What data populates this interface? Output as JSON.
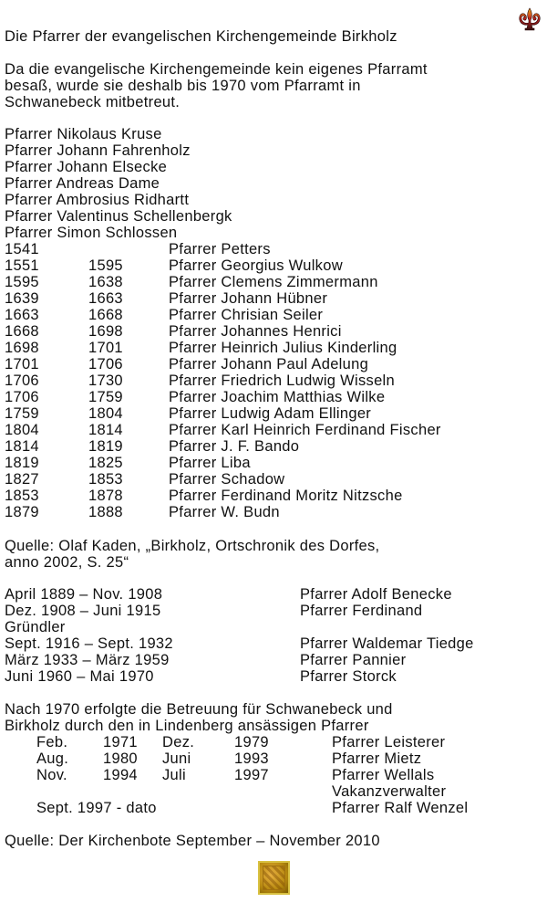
{
  "title": "Die Pfarrer der evangelischen Kirchengemeinde Birkholz",
  "intro": [
    "Da die evangelische Kirchengemeinde kein eigenes Pfarramt",
    "besaß, wurde sie deshalb bis 1970 vom Pfarramt in",
    "Schwanebeck mitbetreut."
  ],
  "early_pastors": [
    "Pfarrer Nikolaus Kruse",
    "Pfarrer Johann Fahrenholz",
    "Pfarrer Johann Elsecke",
    "Pfarrer Andreas Dame",
    "Pfarrer Ambrosius Ridhartt",
    "Pfarrer Valentinus Schellenbergk",
    "Pfarrer Simon Schlossen"
  ],
  "pastor_table": [
    {
      "from": "1541",
      "to": "",
      "name": "Pfarrer Petters"
    },
    {
      "from": "1551",
      "to": "1595",
      "name": "Pfarrer Georgius Wulkow"
    },
    {
      "from": "1595",
      "to": "1638",
      "name": "Pfarrer Clemens Zimmermann"
    },
    {
      "from": "1639",
      "to": "1663",
      "name": "Pfarrer Johann Hübner"
    },
    {
      "from": "1663",
      "to": "1668",
      "name": "Pfarrer Chrisian Seiler"
    },
    {
      "from": "1668",
      "to": "1698",
      "name": "Pfarrer Johannes Henrici"
    },
    {
      "from": "1698",
      "to": "1701",
      "name": "Pfarrer Heinrich Julius Kinderling"
    },
    {
      "from": "1701",
      "to": "1706",
      "name": "Pfarrer Johann Paul Adelung"
    },
    {
      "from": "1706",
      "to": "1730",
      "name": "Pfarrer Friedrich Ludwig Wisseln"
    },
    {
      "from": "1706",
      "to": "1759",
      "name": "Pfarrer Joachim Matthias Wilke"
    },
    {
      "from": "1759",
      "to": "1804",
      "name": "Pfarrer Ludwig Adam Ellinger"
    },
    {
      "from": "1804",
      "to": "1814",
      "name": "Pfarrer Karl Heinrich Ferdinand Fischer"
    },
    {
      "from": "1814",
      "to": "1819",
      "name": "Pfarrer J. F. Bando"
    },
    {
      "from": "1819",
      "to": "1825",
      "name": "Pfarrer Liba"
    },
    {
      "from": "1827",
      "to": "1853",
      "name": "Pfarrer Schadow"
    },
    {
      "from": "1853",
      "to": "1878",
      "name": "Pfarrer Ferdinand Moritz Nitzsche"
    },
    {
      "from": "1879",
      "to": "1888",
      "name": "Pfarrer W. Budn"
    }
  ],
  "source1": [
    "Quelle: Olaf Kaden, „Birkholz, Ortschronik des Dorfes,",
    "anno 2002, S. 25“"
  ],
  "modern_table": [
    {
      "period": "April  1889  –  Nov.  1908",
      "name": "Pfarrer Adolf Benecke"
    },
    {
      "period": "Dez.  1908  –  Juni   1915",
      "name": "Pfarrer Ferdinand"
    },
    {
      "period": "Gründler",
      "name": ""
    },
    {
      "period": "Sept. 1916  –  Sept. 1932",
      "name": "Pfarrer Waldemar Tiedge"
    },
    {
      "period": "März  1933  –  März 1959",
      "name": "Pfarrer Pannier"
    },
    {
      "period": "Juni   1960  –  Mai    1970",
      "name": "Pfarrer Storck"
    }
  ],
  "after1970": [
    "Nach 1970 erfolgte die Betreuung für Schwanebeck und",
    "Birkholz durch den in Lindenberg ansässigen Pfarrer"
  ],
  "lindenberg_table": [
    {
      "m1": "Feb.",
      "y1": "1971",
      "m2": "Dez.",
      "y2": "1979",
      "name": "Pfarrer Leisterer"
    },
    {
      "m1": "Aug.",
      "y1": "1980",
      "m2": "Juni",
      "y2": "1993",
      "name": "Pfarrer Mietz"
    },
    {
      "m1": "Nov.",
      "y1": "1994",
      "m2": "Juli",
      "y2": "1997",
      "name": "Pfarrer Wellals"
    },
    {
      "m1": "",
      "y1": "",
      "m2": "",
      "y2": "",
      "name": "Vakanzverwalter"
    },
    {
      "m1": "Sept. 1997  -  dato",
      "y1": "",
      "m2": "",
      "y2": "",
      "name": "Pfarrer Ralf Wenzel"
    }
  ],
  "source2": "Quelle: Der Kirchenbote September – November 2010",
  "icons": {
    "top": "fleur-de-lis-icon",
    "bottom": "ornament-tile-icon"
  }
}
